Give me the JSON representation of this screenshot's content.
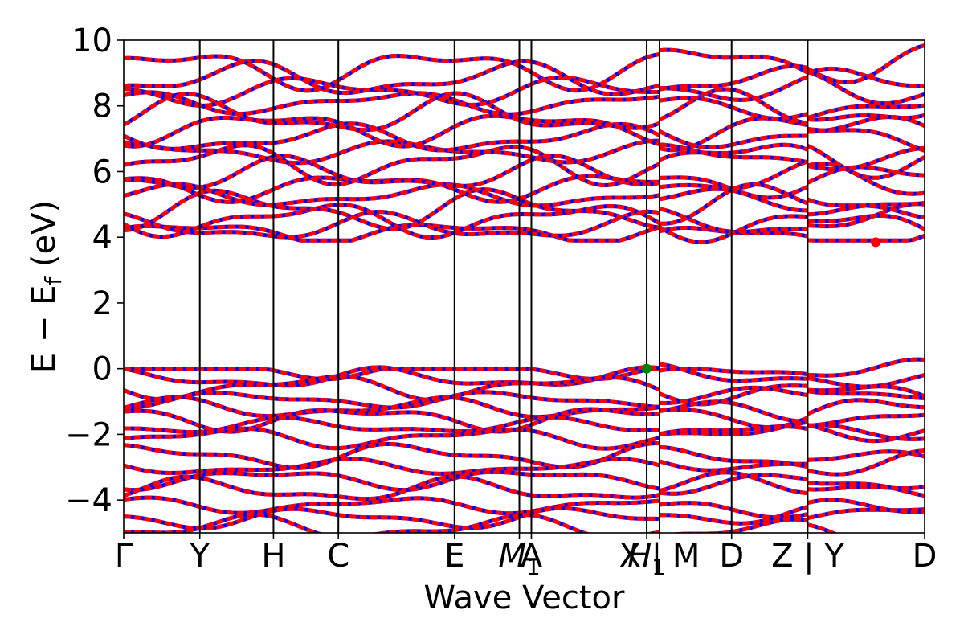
{
  "chart_data": {
    "type": "line",
    "title": "",
    "xlabel": "Wave Vector",
    "ylabel": "E − E_f (eV)",
    "ylabel_parts": {
      "main": "E − E",
      "sub": "f",
      "unit": " (eV)"
    },
    "ylim": [
      -5,
      10
    ],
    "yticks": [
      "−4",
      "−2",
      "0",
      "2",
      "4",
      "6",
      "8",
      "10"
    ],
    "ytick_values": [
      -4,
      -2,
      0,
      2,
      4,
      6,
      8,
      10
    ],
    "xlim": [
      0,
      1
    ],
    "high_symmetry_points": [
      {
        "label": "Γ",
        "x": 0.0
      },
      {
        "label": "Y",
        "x": 0.095
      },
      {
        "label": "H",
        "x": 0.187
      },
      {
        "label": "C",
        "x": 0.268
      },
      {
        "label": "E",
        "x": 0.413
      },
      {
        "label": "M",
        "sub": "1",
        "italic": true,
        "x": 0.494
      },
      {
        "label": "A",
        "x": 0.509
      },
      {
        "label": "H",
        "sub": "1",
        "italic": true,
        "x": 0.653
      },
      {
        "label": "X | M",
        "x": 0.669
      },
      {
        "label": "D",
        "x": 0.759
      },
      {
        "label": "Z | Y",
        "x": 0.854
      },
      {
        "label": "D",
        "x": 1.0
      }
    ],
    "series": [],
    "valence_bands_eV": [
      -0.05,
      -0.3,
      -0.55,
      -0.95,
      -1.2,
      -1.5,
      -1.75,
      -2.1,
      -2.65,
      -3.0,
      -3.35,
      -3.7,
      -4.15,
      -4.55,
      -4.85
    ],
    "conduction_bands_eV": [
      4.15,
      4.3,
      4.55,
      4.85,
      5.25,
      5.55,
      5.9,
      6.25,
      6.6,
      7.0,
      7.35,
      7.7,
      8.1,
      8.45,
      8.8,
      9.15
    ],
    "markers": [
      {
        "name": "VBM",
        "x": 0.653,
        "y": 0.0,
        "color": "#008000"
      },
      {
        "name": "CBM",
        "x": 0.939,
        "y": 3.85,
        "color": "#ff0000"
      }
    ],
    "colors": {
      "band_primary": "#ff0000",
      "band_secondary": "#0000ff",
      "vbm": "#008000",
      "cbm": "#ff0000"
    },
    "grid": false
  }
}
